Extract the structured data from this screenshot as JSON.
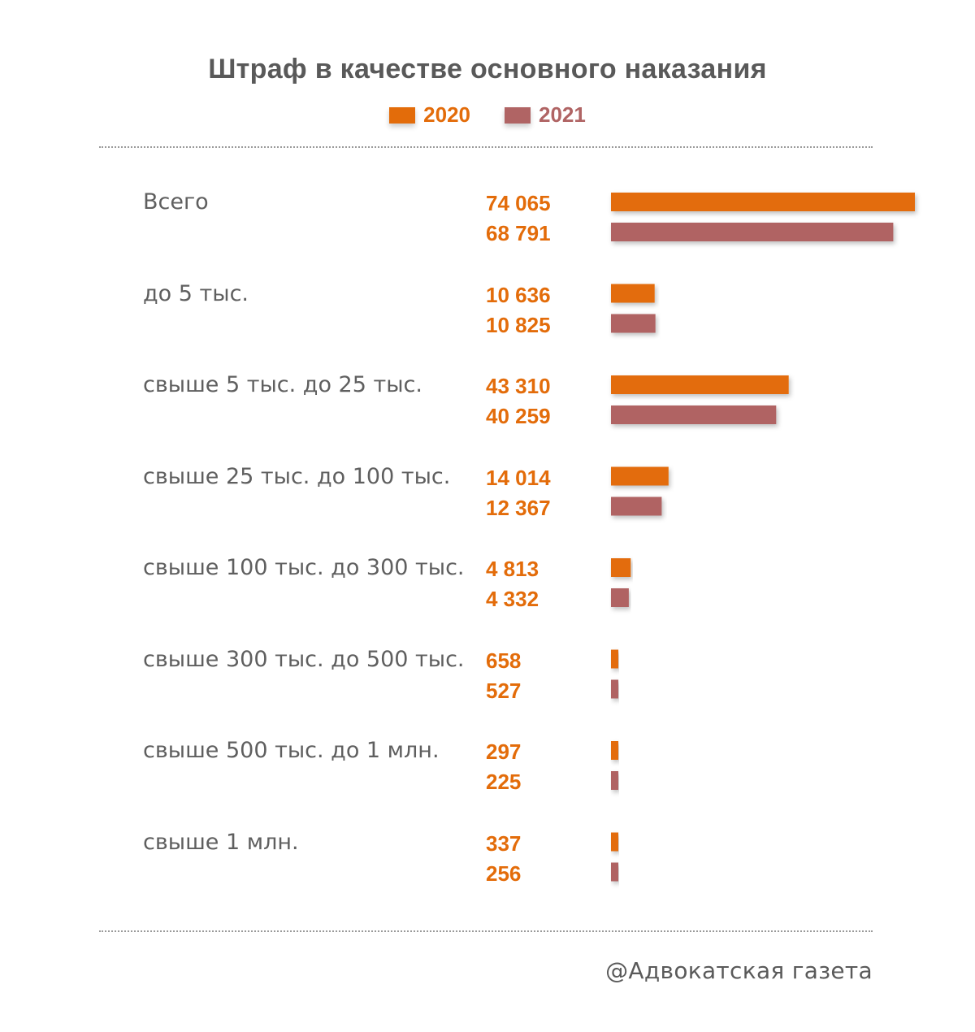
{
  "chart_data": {
    "type": "bar",
    "orientation": "horizontal",
    "title": "Штраф в качестве основного наказания",
    "categories": [
      "Всего",
      "до 5 тыс.",
      "свыше 5 тыс. до 25 тыс.",
      "свыше 25 тыс. до 100 тыс.",
      "свыше 100 тыс. до 300 тыс.",
      "свыше 300 тыс. до 500 тыс.",
      "свыше 500 тыс. до 1 млн.",
      "свыше 1 млн."
    ],
    "series": [
      {
        "name": "2020",
        "color": "#e36c0a",
        "values": [
          74065,
          10636,
          43310,
          14014,
          4813,
          658,
          297,
          337
        ],
        "labels": [
          "74 065",
          "10 636",
          "43 310",
          "14 014",
          "4 813",
          "658",
          "297",
          "337"
        ]
      },
      {
        "name": "2021",
        "color": "#b06464",
        "values": [
          68791,
          10825,
          40259,
          12367,
          4332,
          527,
          225,
          256
        ],
        "labels": [
          "68 791",
          "10 825",
          "40 259",
          "12 367",
          "4 332",
          "527",
          "225",
          "256"
        ]
      }
    ],
    "legend": "top-center",
    "grid": false
  },
  "footer": "@Адвокатская газета"
}
